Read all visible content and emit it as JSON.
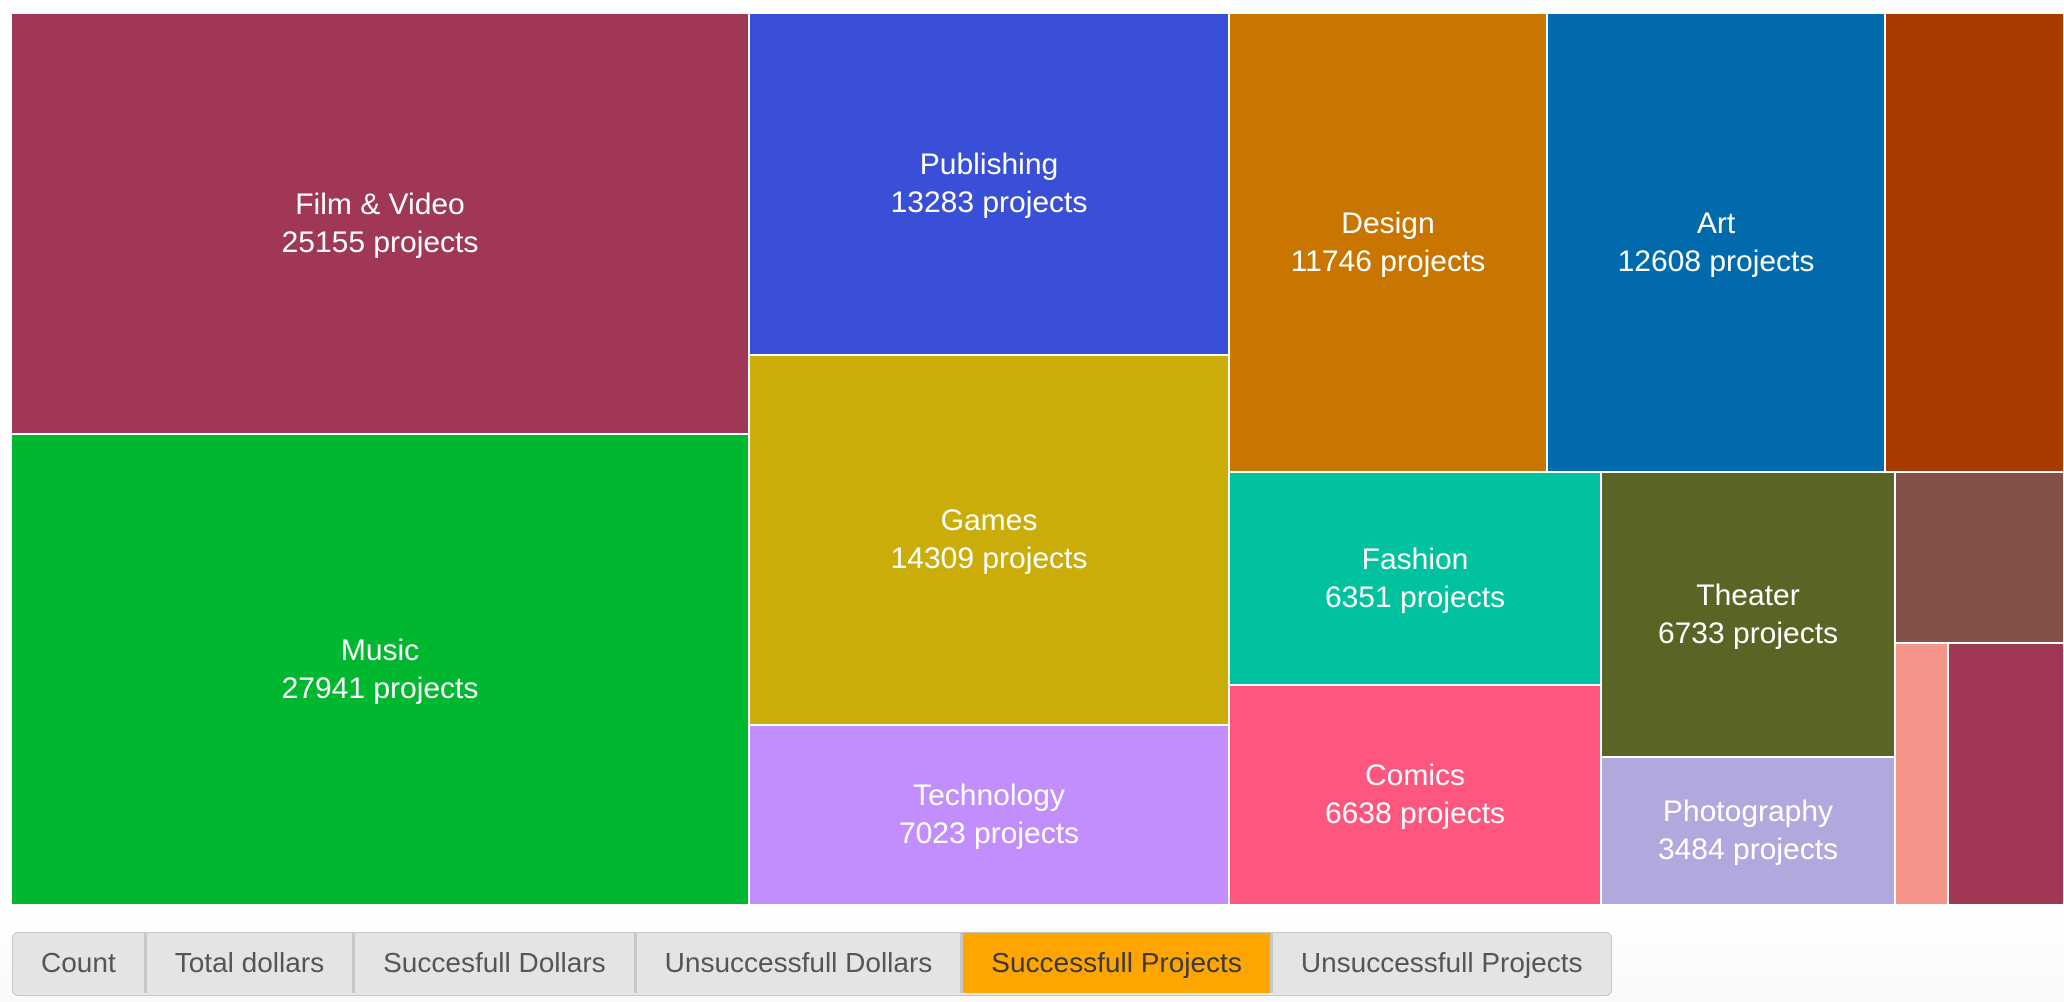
{
  "buttons": [
    {
      "label": "Count",
      "name": "count-button",
      "active": false
    },
    {
      "label": "Total dollars",
      "name": "total-dollars-button",
      "active": false
    },
    {
      "label": "Succesfull Dollars",
      "name": "successful-dollars-button",
      "active": false
    },
    {
      "label": "Unsuccessfull Dollars",
      "name": "unsuccessful-dollars-button",
      "active": false
    },
    {
      "label": "Successfull Projects",
      "name": "successful-projects-button",
      "active": true
    },
    {
      "label": "Unsuccessfull Projects",
      "name": "unsuccessful-projects-button",
      "active": false
    }
  ],
  "chart_data": {
    "type": "treemap",
    "value_unit": "projects",
    "cells": [
      {
        "category": "Film & Video",
        "value": 25155,
        "label_visible": true,
        "color": "#a03855"
      },
      {
        "category": "Music",
        "value": 27941,
        "label_visible": true,
        "color": "#00b830"
      },
      {
        "category": "Publishing",
        "value": 13283,
        "label_visible": true,
        "color": "#3a4fd8"
      },
      {
        "category": "Games",
        "value": 14309,
        "label_visible": true,
        "color": "#cbad0a"
      },
      {
        "category": "Technology",
        "value": 7023,
        "label_visible": true,
        "color": "#c28efd"
      },
      {
        "category": "Design",
        "value": 11746,
        "label_visible": true,
        "color": "#c87600"
      },
      {
        "category": "Art",
        "value": 12608,
        "label_visible": true,
        "color": "#006aac"
      },
      {
        "category": "",
        "value": null,
        "label_visible": false,
        "color": "#a83a00"
      },
      {
        "category": "Fashion",
        "value": 6351,
        "label_visible": true,
        "color": "#00c29e"
      },
      {
        "category": "Comics",
        "value": 6638,
        "label_visible": true,
        "color": "#ff567e"
      },
      {
        "category": "Theater",
        "value": 6733,
        "label_visible": true,
        "color": "#5a6525"
      },
      {
        "category": "Photography",
        "value": 3484,
        "label_visible": true,
        "color": "#b1a8de"
      },
      {
        "category": "",
        "value": null,
        "label_visible": false,
        "color": "#82524a"
      },
      {
        "category": "",
        "value": null,
        "label_visible": false,
        "color": "#f5958a"
      },
      {
        "category": "",
        "value": null,
        "label_visible": false,
        "color": "#a03855"
      }
    ]
  }
}
